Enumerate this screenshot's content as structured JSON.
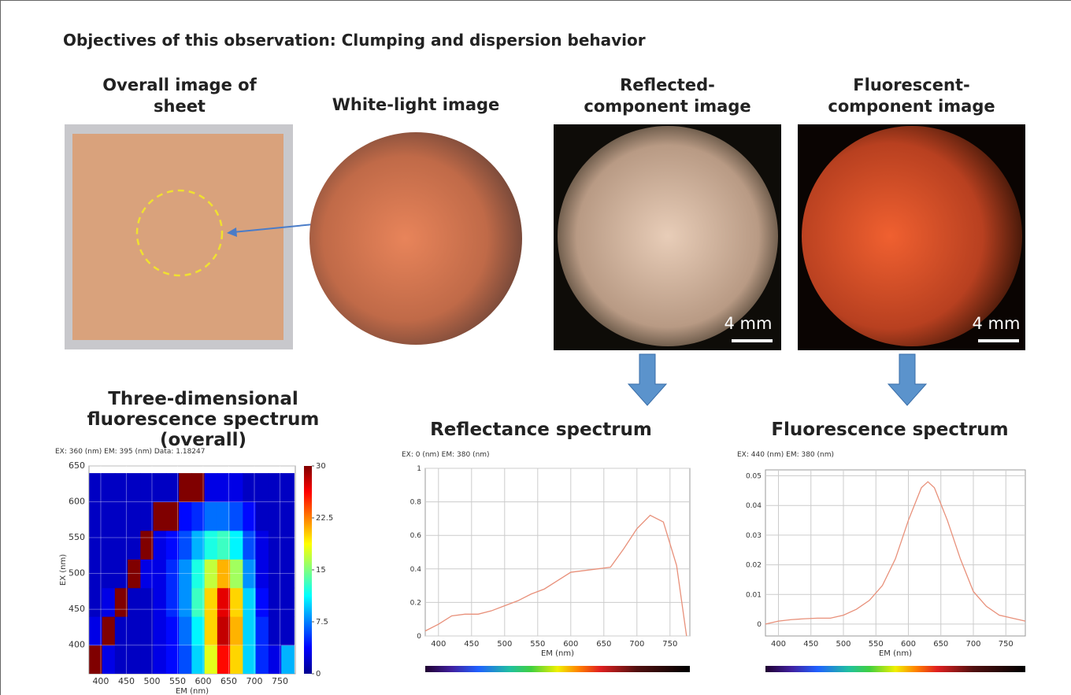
{
  "header": {
    "title": "Objectives of this observation: Clumping and dispersion behavior"
  },
  "images": [
    {
      "caption": "Overall image of sheet"
    },
    {
      "caption": "White-light image"
    },
    {
      "caption": "Reflected-component image",
      "scale": "4 mm"
    },
    {
      "caption": "Fluorescent-component image",
      "scale": "4 mm"
    }
  ],
  "chart_data": [
    {
      "type": "heatmap",
      "title": "Three-dimensional fluorescence spectrum (overall)",
      "subtitle": "EX: 360 (nm) EM: 395 (nm) Data: 1.18247",
      "x_label": "EM (nm)",
      "y_label": "EX (nm)",
      "x": [
        390,
        415,
        440,
        465,
        490,
        515,
        540,
        565,
        590,
        615,
        640,
        665,
        690,
        715,
        740,
        765
      ],
      "y": [
        380,
        420,
        460,
        500,
        540,
        580,
        620
      ],
      "z": [
        [
          30,
          3,
          2,
          2,
          2,
          3,
          4,
          6,
          10,
          18,
          26,
          20,
          10,
          5,
          3,
          9
        ],
        [
          3,
          30,
          2,
          2,
          2,
          3,
          4,
          7,
          11,
          20,
          28,
          21,
          10,
          5,
          2,
          2
        ],
        [
          2,
          3,
          30,
          2,
          2,
          3,
          5,
          8,
          13,
          20,
          27,
          20,
          10,
          4,
          2,
          2
        ],
        [
          2,
          2,
          2,
          30,
          3,
          3,
          5,
          8,
          12,
          17,
          21,
          16,
          8,
          3,
          2,
          2
        ],
        [
          2,
          2,
          2,
          2,
          30,
          3,
          4,
          6,
          9,
          12,
          13,
          11,
          6,
          3,
          2,
          2
        ],
        [
          2,
          2,
          2,
          2,
          2,
          30,
          30,
          4,
          5,
          7,
          7,
          6,
          4,
          2,
          2,
          2
        ],
        [
          2,
          2,
          2,
          2,
          2,
          2,
          2,
          30,
          30,
          3,
          3,
          3,
          2,
          2,
          2,
          2
        ]
      ],
      "colormap": "jet",
      "zlim": [
        0,
        30
      ],
      "colorbar_ticks": [
        0,
        7.5,
        15,
        22.5,
        30
      ],
      "xlim": [
        377,
        780
      ],
      "ylim": [
        360,
        650
      ],
      "xticks": [
        400,
        450,
        500,
        550,
        600,
        650,
        700,
        750
      ],
      "yticks": [
        400,
        450,
        500,
        550,
        600,
        650
      ],
      "grid": true
    },
    {
      "type": "line",
      "title": "Reflectance spectrum",
      "subtitle": "EX: 0 (nm) EM: 380 (nm)",
      "x_label": "EM (nm)",
      "color": "#e8907a",
      "x": [
        380,
        400,
        420,
        440,
        460,
        480,
        500,
        520,
        540,
        560,
        580,
        600,
        620,
        640,
        660,
        680,
        700,
        720,
        740,
        760,
        775
      ],
      "values": [
        0.03,
        0.07,
        0.12,
        0.13,
        0.13,
        0.15,
        0.18,
        0.21,
        0.25,
        0.28,
        0.33,
        0.38,
        0.39,
        0.4,
        0.41,
        0.52,
        0.64,
        0.72,
        0.68,
        0.42,
        0
      ],
      "xlim": [
        380,
        780
      ],
      "ylim": [
        0,
        1
      ],
      "xticks": [
        400,
        450,
        500,
        550,
        600,
        650,
        700,
        750
      ],
      "yticks": [
        0,
        0.2,
        0.4,
        0.6,
        0.8,
        1
      ],
      "grid": true
    },
    {
      "type": "line",
      "title": "Fluorescence spectrum",
      "subtitle": "EX: 440 (nm) EM: 380 (nm)",
      "x_label": "EM (nm)",
      "color": "#e8907a",
      "x": [
        380,
        400,
        420,
        440,
        460,
        480,
        500,
        520,
        540,
        560,
        580,
        600,
        620,
        630,
        640,
        660,
        680,
        700,
        720,
        740,
        760,
        780
      ],
      "values": [
        0,
        0.001,
        0.0015,
        0.0018,
        0.002,
        0.002,
        0.003,
        0.005,
        0.008,
        0.013,
        0.022,
        0.035,
        0.046,
        0.048,
        0.046,
        0.035,
        0.022,
        0.011,
        0.006,
        0.003,
        0.002,
        0.001
      ],
      "xlim": [
        380,
        780
      ],
      "ylim": [
        -0.004,
        0.052
      ],
      "xticks": [
        400,
        450,
        500,
        550,
        600,
        650,
        700,
        750
      ],
      "yticks": [
        0,
        0.01,
        0.02,
        0.03,
        0.04,
        0.05
      ],
      "grid": true
    }
  ]
}
